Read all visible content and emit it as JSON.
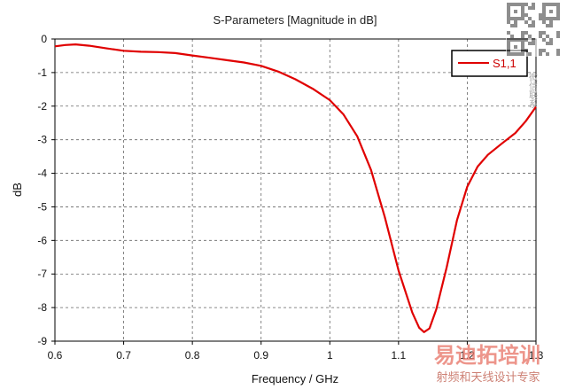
{
  "chart_data": {
    "type": "line",
    "title": "S-Parameters [Magnitude in dB]",
    "xlabel": "Frequency / GHz",
    "ylabel": "dB",
    "xlim": [
      0.6,
      1.3
    ],
    "ylim": [
      -9,
      0
    ],
    "x_ticks": [
      "0.6",
      "0.7",
      "0.8",
      "0.9",
      "1",
      "1.1",
      "1.2",
      "1.3"
    ],
    "y_ticks": [
      "0",
      "-1",
      "-2",
      "-3",
      "-4",
      "-5",
      "-6",
      "-7",
      "-8",
      "-9"
    ],
    "grid": true,
    "legend_position": "top-right",
    "series": [
      {
        "name": "S1,1",
        "color": "#e00000",
        "points": [
          [
            0.6,
            -0.22
          ],
          [
            0.615,
            -0.18
          ],
          [
            0.63,
            -0.16
          ],
          [
            0.65,
            -0.2
          ],
          [
            0.675,
            -0.28
          ],
          [
            0.7,
            -0.35
          ],
          [
            0.725,
            -0.38
          ],
          [
            0.75,
            -0.39
          ],
          [
            0.775,
            -0.42
          ],
          [
            0.8,
            -0.49
          ],
          [
            0.825,
            -0.56
          ],
          [
            0.85,
            -0.63
          ],
          [
            0.875,
            -0.7
          ],
          [
            0.9,
            -0.8
          ],
          [
            0.925,
            -0.97
          ],
          [
            0.95,
            -1.2
          ],
          [
            0.975,
            -1.48
          ],
          [
            1.0,
            -1.82
          ],
          [
            1.02,
            -2.25
          ],
          [
            1.04,
            -2.9
          ],
          [
            1.06,
            -3.9
          ],
          [
            1.08,
            -5.3
          ],
          [
            1.1,
            -6.9
          ],
          [
            1.12,
            -8.15
          ],
          [
            1.13,
            -8.6
          ],
          [
            1.137,
            -8.73
          ],
          [
            1.145,
            -8.62
          ],
          [
            1.155,
            -8.05
          ],
          [
            1.17,
            -6.8
          ],
          [
            1.185,
            -5.4
          ],
          [
            1.2,
            -4.4
          ],
          [
            1.215,
            -3.8
          ],
          [
            1.23,
            -3.45
          ],
          [
            1.25,
            -3.12
          ],
          [
            1.27,
            -2.8
          ],
          [
            1.285,
            -2.45
          ],
          [
            1.3,
            -2.02
          ]
        ]
      }
    ]
  },
  "watermark": {
    "title": "易迪拓培训",
    "subtitle": "射频和天线设计专家",
    "qr_caption": "微信联系"
  }
}
